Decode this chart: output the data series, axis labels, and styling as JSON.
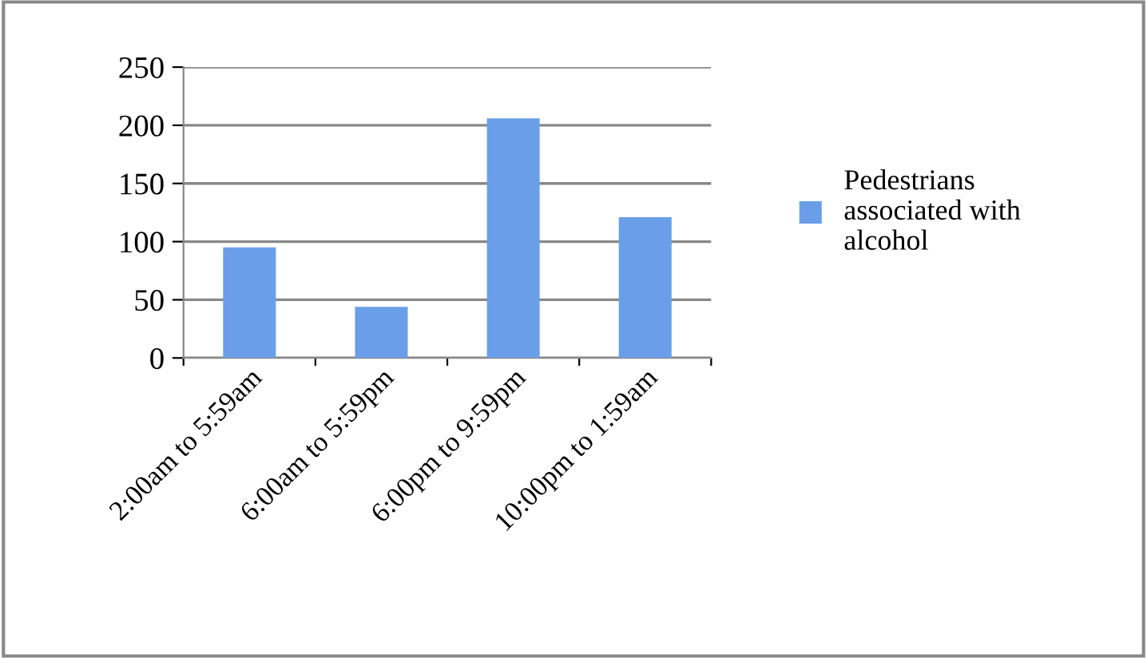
{
  "chart_data": {
    "type": "bar",
    "categories": [
      "2:00am to 5:59am",
      "6:00am to 5:59pm",
      "6:00pm to 9:59pm",
      "10:00pm to 1:59am"
    ],
    "series": [
      {
        "name": "Pedestrians associated with alcohol",
        "color": "#6a9ee8",
        "values": [
          95,
          44,
          206,
          121
        ]
      }
    ],
    "ylim": [
      0,
      250
    ],
    "yticks": [
      0,
      50,
      100,
      150,
      200,
      250
    ],
    "grid": "y",
    "legend": "right"
  }
}
